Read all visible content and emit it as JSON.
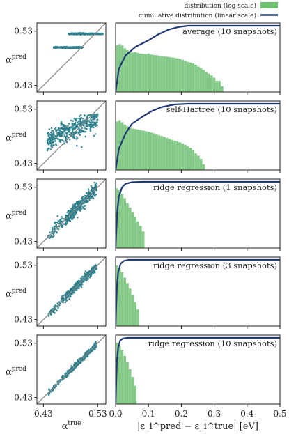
{
  "colors": {
    "scatter": "#2e7f8c",
    "histogram": "#6fbf73",
    "cumulative": "#1f3a75",
    "diagonal": "#888888",
    "axes": "#222222"
  },
  "legend": {
    "items": [
      {
        "label": "distribution (log scale)",
        "kind": "patch"
      },
      {
        "label": "cumulative distribution (linear scale)",
        "kind": "line"
      }
    ],
    "placement": "top-right"
  },
  "axes": {
    "scatter_xlabel_base": "α",
    "scatter_xlabel_sup": "true",
    "scatter_ylabel_base": "α",
    "scatter_ylabel_sup": "pred",
    "scatter_ticks": [
      "0.43",
      "0.53"
    ],
    "scatter_range": [
      0.43,
      0.53
    ],
    "hist_xticks": [
      "0.0",
      "0.1",
      "0.2",
      "0.3",
      "0.4",
      "0.5"
    ],
    "hist_xlabel": "|ε_i^pred − ε_i^true| [eV]",
    "hist_xlim": [
      0.0,
      0.5
    ],
    "hist_scale": "log",
    "cumulative_scale": "linear"
  },
  "chart_data": [
    {
      "type": "scatter",
      "panel_title": "average (10 snapshots)",
      "diagonal": true,
      "hist_bins_counts": [
        180,
        200,
        170,
        120,
        95,
        80,
        70,
        75,
        68,
        62,
        60,
        58,
        62,
        55,
        52,
        50,
        48,
        46,
        44,
        42,
        40,
        38,
        36,
        34,
        32,
        28,
        25,
        22,
        20,
        18,
        15,
        12,
        10,
        8,
        6,
        5,
        4,
        3,
        2,
        2,
        1
      ],
      "hist_bin_width": 0.008,
      "cumulative": [
        [
          0.0,
          0.0
        ],
        [
          0.01,
          0.35
        ],
        [
          0.03,
          0.55
        ],
        [
          0.06,
          0.68
        ],
        [
          0.1,
          0.78
        ],
        [
          0.13,
          0.87
        ],
        [
          0.16,
          0.94
        ],
        [
          0.19,
          0.98
        ],
        [
          0.22,
          1.0
        ],
        [
          0.5,
          1.0
        ]
      ]
    },
    {
      "type": "scatter",
      "panel_title": "self-Hartree (10 snapshots)",
      "diagonal": true,
      "hist_bins_counts": [
        220,
        260,
        200,
        150,
        120,
        100,
        90,
        85,
        80,
        75,
        70,
        65,
        60,
        55,
        50,
        45,
        40,
        36,
        32,
        28,
        25,
        22,
        20,
        18,
        16,
        14,
        12,
        10,
        8,
        6,
        4,
        3,
        2,
        1
      ],
      "hist_bin_width": 0.008,
      "cumulative": [
        [
          0.0,
          0.0
        ],
        [
          0.01,
          0.32
        ],
        [
          0.03,
          0.55
        ],
        [
          0.05,
          0.7
        ],
        [
          0.08,
          0.8
        ],
        [
          0.11,
          0.89
        ],
        [
          0.14,
          0.95
        ],
        [
          0.18,
          0.99
        ],
        [
          0.22,
          1.0
        ],
        [
          0.5,
          1.0
        ]
      ]
    },
    {
      "type": "scatter",
      "panel_title": "ridge regression (1 snapshots)",
      "diagonal": true,
      "hist_bins_counts": [
        900,
        700,
        450,
        260,
        140,
        80,
        45,
        25,
        14,
        8,
        4
      ],
      "hist_bin_width": 0.008,
      "cumulative": [
        [
          0.0,
          0.0
        ],
        [
          0.005,
          0.55
        ],
        [
          0.01,
          0.78
        ],
        [
          0.02,
          0.92
        ],
        [
          0.03,
          0.97
        ],
        [
          0.05,
          0.995
        ],
        [
          0.08,
          1.0
        ],
        [
          0.5,
          1.0
        ]
      ]
    },
    {
      "type": "scatter",
      "panel_title": "ridge regression (3 snapshots)",
      "diagonal": true,
      "hist_bins_counts": [
        1000,
        750,
        420,
        220,
        110,
        55,
        25,
        10,
        4
      ],
      "hist_bin_width": 0.008,
      "cumulative": [
        [
          0.0,
          0.0
        ],
        [
          0.004,
          0.6
        ],
        [
          0.008,
          0.82
        ],
        [
          0.015,
          0.94
        ],
        [
          0.025,
          0.985
        ],
        [
          0.04,
          1.0
        ],
        [
          0.5,
          1.0
        ]
      ]
    },
    {
      "type": "scatter",
      "panel_title": "ridge regression (10 snapshots)",
      "diagonal": true,
      "hist_bins_counts": [
        1100,
        800,
        440,
        210,
        95,
        40,
        15,
        5
      ],
      "hist_bin_width": 0.008,
      "cumulative": [
        [
          0.0,
          0.0
        ],
        [
          0.004,
          0.65
        ],
        [
          0.008,
          0.86
        ],
        [
          0.014,
          0.96
        ],
        [
          0.022,
          0.99
        ],
        [
          0.035,
          1.0
        ],
        [
          0.5,
          1.0
        ]
      ]
    }
  ]
}
